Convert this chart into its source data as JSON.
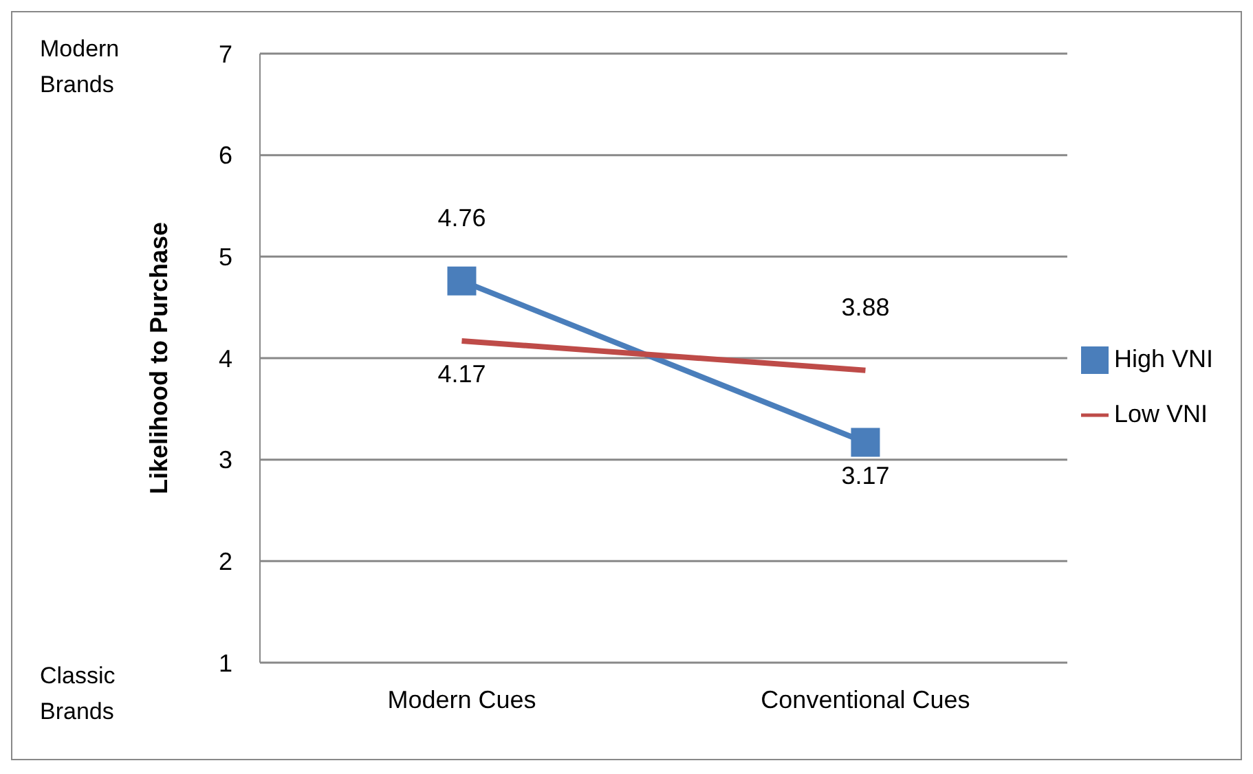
{
  "chart_data": {
    "type": "line",
    "ylabel": "Likelihood to Purchase",
    "categories": [
      "Modern Cues",
      "Conventional Cues"
    ],
    "series": [
      {
        "name": "High VNI",
        "color": "#4a7ebb",
        "values": [
          4.76,
          3.17
        ],
        "marker": "square"
      },
      {
        "name": "Low VNI",
        "color": "#be4b48",
        "values": [
          4.17,
          3.88
        ],
        "marker": "none"
      }
    ],
    "ylim": [
      1,
      7
    ],
    "yticks": [
      1,
      2,
      3,
      4,
      5,
      6,
      7
    ],
    "grid": "y",
    "legend": "right",
    "data_labels": true,
    "annotations": [
      "Modern Brands",
      "Classic Brands"
    ]
  }
}
